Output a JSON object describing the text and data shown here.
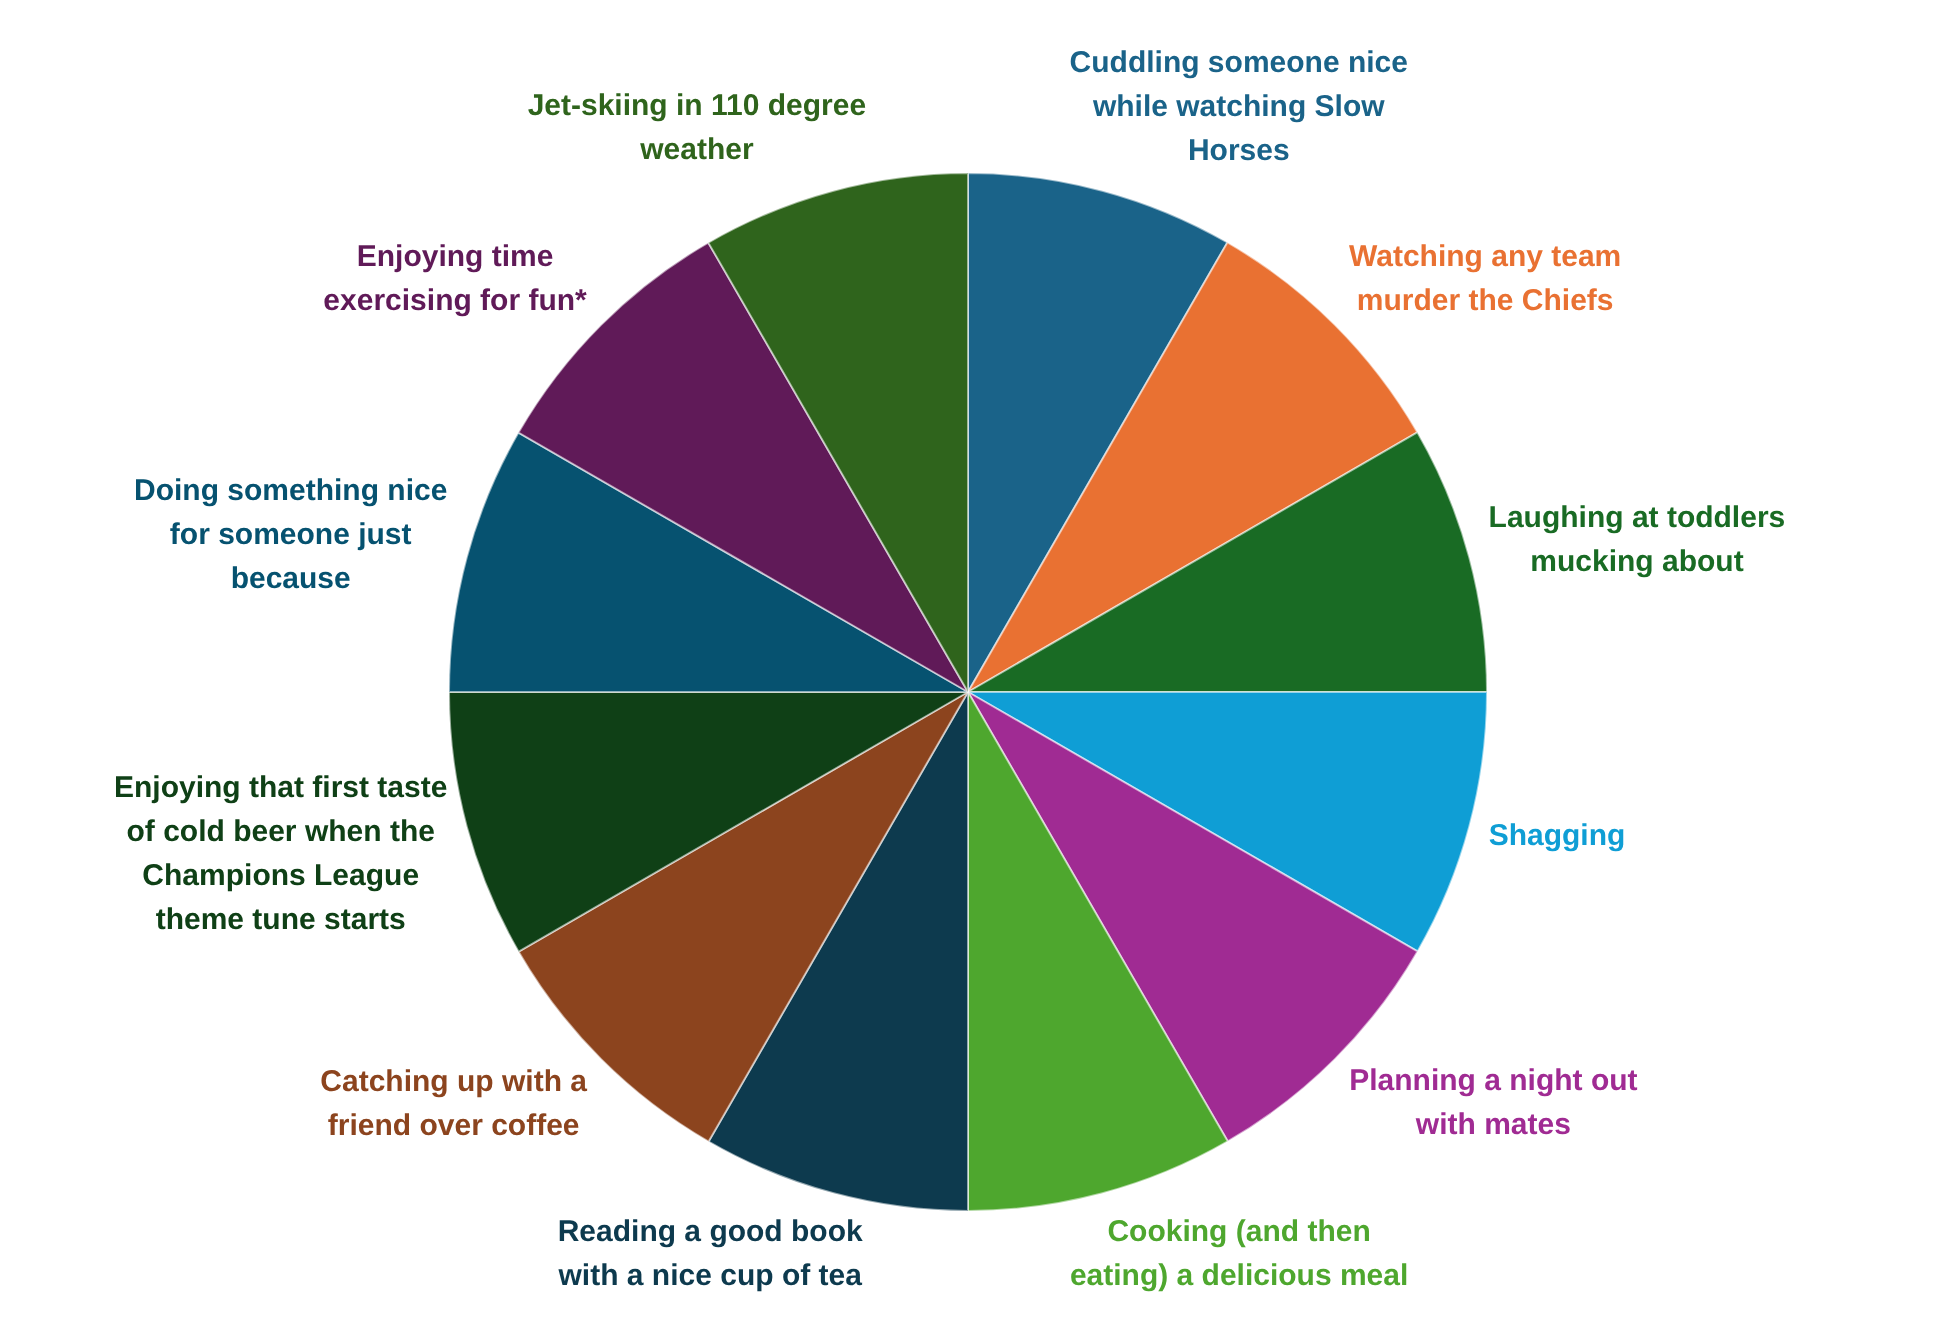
{
  "chart_data": {
    "type": "pie",
    "categories": [
      "Cuddling someone nice while watching Slow Horses",
      "Watching any team murder the Chiefs",
      "Laughing at toddlers mucking about",
      "Shagging",
      "Planning a night out with mates",
      "Cooking (and then eating) a delicious meal",
      "Reading a good book with a nice cup of tea",
      "Catching up with a friend over coffee",
      "Enjoying that first taste of cold beer when the Champions League theme tune starts",
      "Doing something nice for someone just because",
      "Enjoying time exercising for fun*",
      "Jet-skiing in 110 degree weather"
    ],
    "values": [
      8.33,
      8.33,
      8.34,
      8.33,
      8.33,
      8.34,
      8.33,
      8.33,
      8.34,
      8.33,
      8.33,
      8.34
    ],
    "colors": [
      "#1a6389",
      "#e97132",
      "#196b24",
      "#0f9ed5",
      "#a02b93",
      "#4ea72e",
      "#0d3a4e",
      "#8c441e",
      "#0f4016",
      "#065270",
      "#601a58",
      "#2f641c"
    ]
  }
}
